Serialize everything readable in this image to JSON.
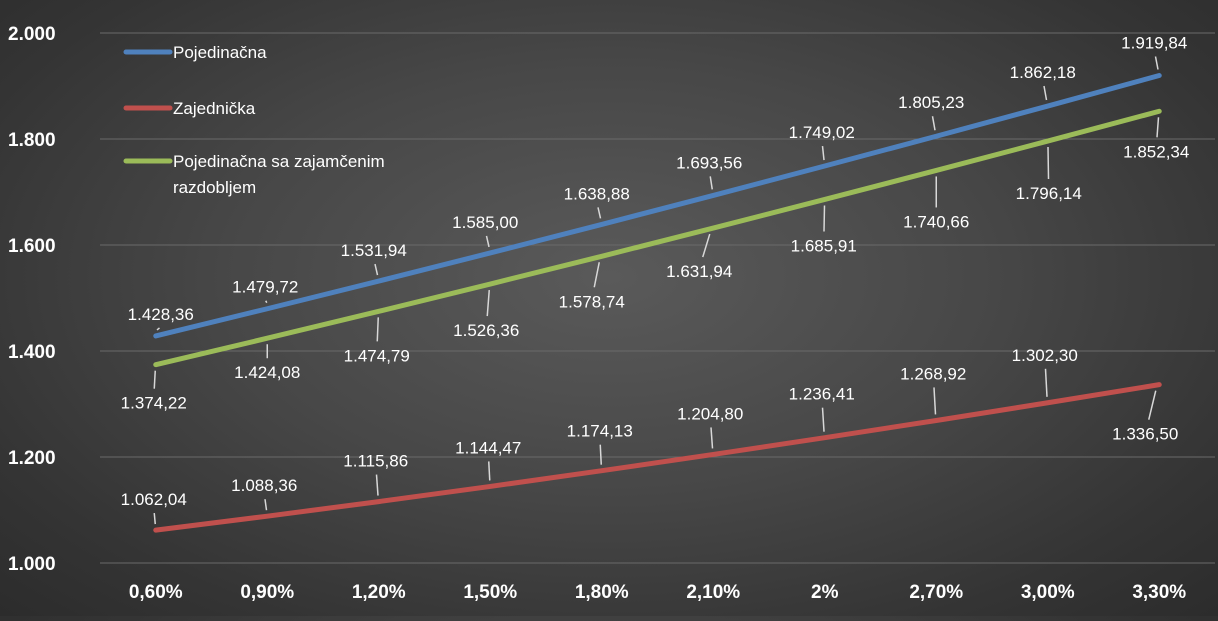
{
  "chart_data": {
    "type": "line",
    "title": "",
    "xlabel": "",
    "ylabel": "",
    "categories": [
      "0,60%",
      "0,90%",
      "1,20%",
      "1,50%",
      "1,80%",
      "2,10%",
      "2%",
      "2,70%",
      "3,00%",
      "3,30%"
    ],
    "ylim": [
      1000,
      2000
    ],
    "yticks": [
      1000,
      1200,
      1400,
      1600,
      1800,
      2000
    ],
    "ytick_labels": [
      "1.000",
      "1.200",
      "1.400",
      "1.600",
      "1.800",
      "2.000"
    ],
    "grid": true,
    "legend_position": "top-left",
    "series": [
      {
        "name": "Pojedinačna",
        "name_lines": [
          "Pojedinačna"
        ],
        "color": "#4f81bd",
        "values": [
          1428.36,
          1479.72,
          1531.94,
          1585.0,
          1638.88,
          1693.56,
          1749.02,
          1805.23,
          1862.18,
          1919.84
        ],
        "labels": [
          "1.428,36",
          "1.479,72",
          "1.531,94",
          "1.585,00",
          "1.638,88",
          "1.693,56",
          "1.749,02",
          "1.805,23",
          "1.862,18",
          "1.919,84"
        ]
      },
      {
        "name": "Zajednička",
        "name_lines": [
          "Zajednička"
        ],
        "color": "#c0504d",
        "values": [
          1062.04,
          1088.36,
          1115.86,
          1144.47,
          1174.13,
          1204.8,
          1236.41,
          1268.92,
          1302.3,
          1336.5
        ],
        "labels": [
          "1.062,04",
          "1.088,36",
          "1.115,86",
          "1.144,47",
          "1.174,13",
          "1.204,80",
          "1.236,41",
          "1.268,92",
          "1.302,30",
          "1.336,50"
        ]
      },
      {
        "name": "Pojedinačna sa zajamčenim razdobljem",
        "name_lines": [
          "Pojedinačna sa zajamčenim",
          "razdobljem"
        ],
        "color": "#9bbb59",
        "values": [
          1374.22,
          1424.08,
          1474.79,
          1526.36,
          1578.74,
          1631.94,
          1685.91,
          1740.66,
          1796.14,
          1852.34
        ],
        "labels": [
          "1.374,22",
          "1.424,08",
          "1.474,79",
          "1.526,36",
          "1.578,74",
          "1.631,94",
          "1.685,91",
          "1.740,66",
          "1.796,14",
          "1.852,34"
        ]
      }
    ]
  }
}
